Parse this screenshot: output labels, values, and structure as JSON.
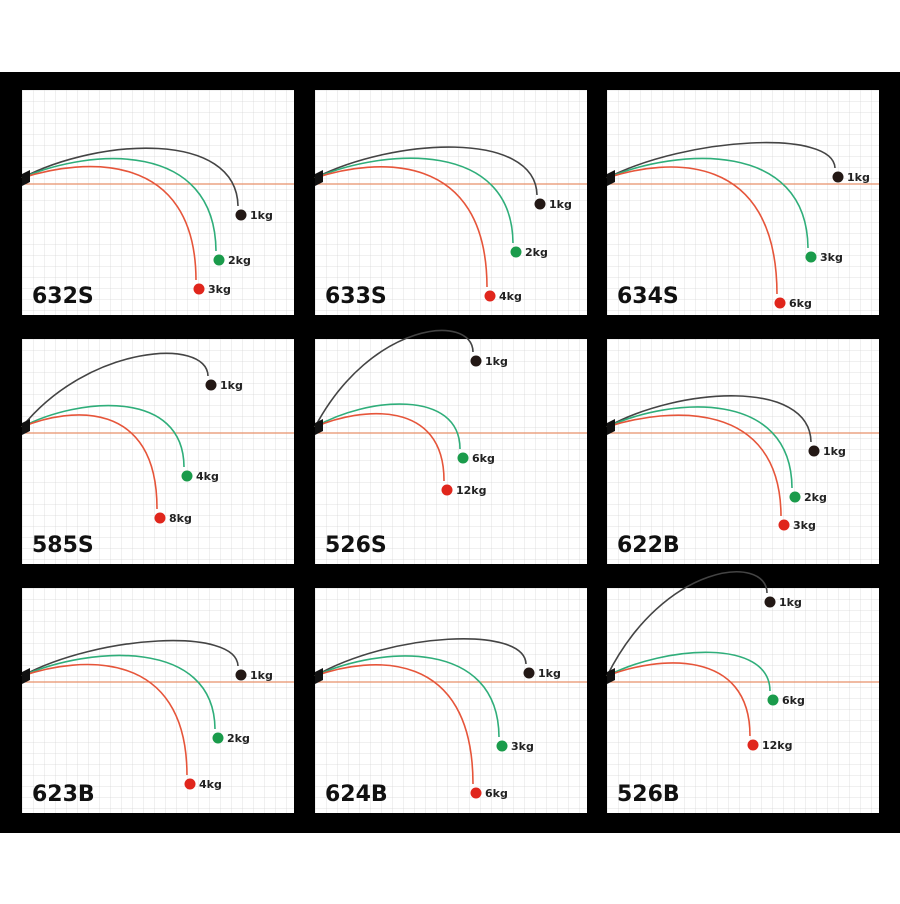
{
  "panels": [
    {
      "model": "632S",
      "loads": [
        "1kg",
        "2kg",
        "3kg"
      ]
    },
    {
      "model": "633S",
      "loads": [
        "1kg",
        "2kg",
        "4kg"
      ]
    },
    {
      "model": "634S",
      "loads": [
        "1kg",
        "3kg",
        "6kg"
      ]
    },
    {
      "model": "585S",
      "loads": [
        "1kg",
        "4kg",
        "8kg"
      ]
    },
    {
      "model": "526S",
      "loads": [
        "1kg",
        "6kg",
        "12kg"
      ]
    },
    {
      "model": "622B",
      "loads": [
        "1kg",
        "2kg",
        "3kg"
      ]
    },
    {
      "model": "623B",
      "loads": [
        "1kg",
        "2kg",
        "4kg"
      ]
    },
    {
      "model": "624B",
      "loads": [
        "1kg",
        "3kg",
        "6kg"
      ]
    },
    {
      "model": "526B",
      "loads": [
        "1kg",
        "6kg",
        "12kg"
      ]
    }
  ]
}
